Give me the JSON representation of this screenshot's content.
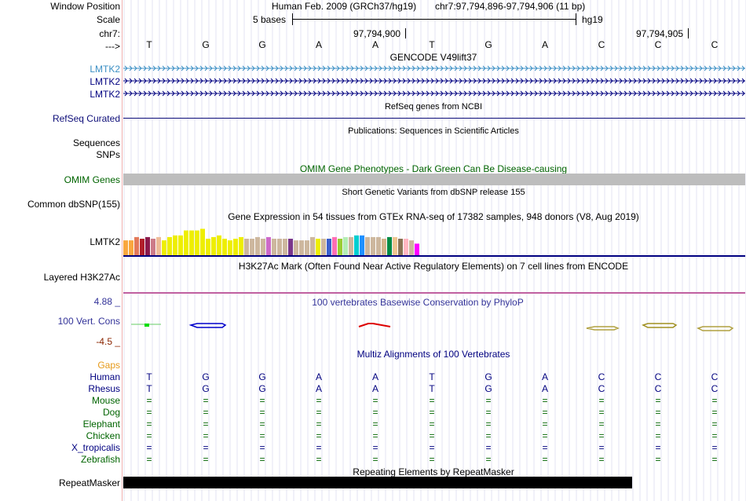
{
  "header": {
    "window_position_label": "Window Position",
    "scale_label": "Scale",
    "chrom_label": "chr7:",
    "strand_label": "--->",
    "assembly": "Human Feb. 2009 (GRCh37/hg19)",
    "position": "chr7:97,794,896-97,794,906 (11 bp)",
    "scale_text": "5 bases",
    "scale_db": "hg19",
    "coord1": "97,794,900",
    "coord2": "97,794,905",
    "bases": [
      "T",
      "G",
      "G",
      "A",
      "A",
      "T",
      "G",
      "A",
      "C",
      "C",
      "C"
    ]
  },
  "tracks": {
    "gencode": {
      "title": "GENCODE V49lift37",
      "genes": [
        "LMTK2",
        "LMTK2",
        "LMTK2"
      ],
      "color_first": "#3b8fc4",
      "color": "#000080"
    },
    "refseq": {
      "title": "RefSeq genes from NCBI",
      "label": "RefSeq Curated",
      "color": "#0c0c78"
    },
    "publications": {
      "title": "Publications: Sequences in Scientific Articles",
      "labels": [
        "Sequences",
        "SNPs"
      ]
    },
    "omim": {
      "title": "OMIM Gene Phenotypes - Dark Green Can Be Disease-causing",
      "label": "OMIM Genes",
      "color": "#006400"
    },
    "dbsnp": {
      "title": "Short Genetic Variants from dbSNP release 155",
      "label": "Common dbSNP(155)"
    },
    "gtex": {
      "title": "Gene Expression in 54 tissues from GTEx RNA-seq of 17382 samples, 948 donors (V8, Aug 2019)",
      "label": "LMTK2",
      "bars": [
        {
          "v": 0.45,
          "c": "#f9a73e"
        },
        {
          "v": 0.45,
          "c": "#f9a73e"
        },
        {
          "v": 0.55,
          "c": "#e3795a"
        },
        {
          "v": 0.5,
          "c": "#b01e2a"
        },
        {
          "v": 0.55,
          "c": "#8b1a4c"
        },
        {
          "v": 0.5,
          "c": "#cc7a88"
        },
        {
          "v": 0.55,
          "c": "#eebb99"
        },
        {
          "v": 0.45,
          "c": "#eeee00"
        },
        {
          "v": 0.55,
          "c": "#eeee00"
        },
        {
          "v": 0.6,
          "c": "#eeee00"
        },
        {
          "v": 0.6,
          "c": "#eeee00"
        },
        {
          "v": 0.75,
          "c": "#eeee00"
        },
        {
          "v": 0.75,
          "c": "#eeee00"
        },
        {
          "v": 0.75,
          "c": "#eeee00"
        },
        {
          "v": 0.8,
          "c": "#eeee00"
        },
        {
          "v": 0.5,
          "c": "#eeee00"
        },
        {
          "v": 0.55,
          "c": "#eeee00"
        },
        {
          "v": 0.6,
          "c": "#eeee00"
        },
        {
          "v": 0.5,
          "c": "#eeee00"
        },
        {
          "v": 0.45,
          "c": "#eeee00"
        },
        {
          "v": 0.5,
          "c": "#eeee00"
        },
        {
          "v": 0.55,
          "c": "#eeee00"
        },
        {
          "v": 0.5,
          "c": "#cdb79e"
        },
        {
          "v": 0.5,
          "c": "#cdb79e"
        },
        {
          "v": 0.55,
          "c": "#cdb79e"
        },
        {
          "v": 0.5,
          "c": "#cdb79e"
        },
        {
          "v": 0.55,
          "c": "#cd69c9"
        },
        {
          "v": 0.5,
          "c": "#cdb79e"
        },
        {
          "v": 0.5,
          "c": "#cdb79e"
        },
        {
          "v": 0.5,
          "c": "#cdb79e"
        },
        {
          "v": 0.5,
          "c": "#7a378b"
        },
        {
          "v": 0.45,
          "c": "#cdb79e"
        },
        {
          "v": 0.45,
          "c": "#cdb79e"
        },
        {
          "v": 0.45,
          "c": "#cdb79e"
        },
        {
          "v": 0.55,
          "c": "#cdb79e"
        },
        {
          "v": 0.5,
          "c": "#eeee00"
        },
        {
          "v": 0.5,
          "c": "#cdb79e"
        },
        {
          "v": 0.5,
          "c": "#3a5fcd"
        },
        {
          "v": 0.55,
          "c": "#ff6eb4"
        },
        {
          "v": 0.5,
          "c": "#9acd32"
        },
        {
          "v": 0.55,
          "c": "#b4eeb4"
        },
        {
          "v": 0.55,
          "c": "#cdb79e"
        },
        {
          "v": 0.6,
          "c": "#00ced1"
        },
        {
          "v": 0.6,
          "c": "#1e90ff"
        },
        {
          "v": 0.55,
          "c": "#cdb79e"
        },
        {
          "v": 0.55,
          "c": "#cdb79e"
        },
        {
          "v": 0.55,
          "c": "#cdb79e"
        },
        {
          "v": 0.5,
          "c": "#d2b48c"
        },
        {
          "v": 0.55,
          "c": "#008b45"
        },
        {
          "v": 0.55,
          "c": "#eec591"
        },
        {
          "v": 0.5,
          "c": "#8b7355"
        },
        {
          "v": 0.5,
          "c": "#ffb6c1"
        },
        {
          "v": 0.45,
          "c": "#cdb79e"
        },
        {
          "v": 0.35,
          "c": "#ff00ff"
        }
      ]
    },
    "h3k27ac": {
      "title": "H3K27Ac Mark (Often Found Near Active Regulatory Elements) on 7 cell lines from ENCODE",
      "label": "Layered H3K27Ac",
      "color": "#c060a0"
    },
    "phylop": {
      "title": "100 vertebrates Basewise Conservation by PhyloP",
      "label": "100 Vert. Cons",
      "ymax": "4.88 _",
      "ymin": "-4.5 _",
      "color": "#333399",
      "min_color": "#8b2500"
    },
    "multiz": {
      "title": "Multiz Alignments of 100 Vertebrates",
      "gaps_label": "Gaps",
      "species": [
        {
          "name": "Human",
          "color": "#000080",
          "row": [
            "T",
            "G",
            "G",
            "A",
            "A",
            "T",
            "G",
            "A",
            "C",
            "C",
            "C"
          ]
        },
        {
          "name": "Rhesus",
          "color": "#000080",
          "row": [
            "T",
            "G",
            "G",
            "A",
            "A",
            "T",
            "G",
            "A",
            "C",
            "C",
            "C"
          ]
        },
        {
          "name": "Mouse",
          "color": "#006400",
          "row": [
            "=",
            "=",
            "=",
            "=",
            "=",
            "=",
            "=",
            "=",
            "=",
            "=",
            "="
          ]
        },
        {
          "name": "Dog",
          "color": "#006400",
          "row": [
            "=",
            "=",
            "=",
            "=",
            "=",
            "=",
            "=",
            "=",
            "=",
            "=",
            "="
          ]
        },
        {
          "name": "Elephant",
          "color": "#006400",
          "row": [
            "=",
            "=",
            "=",
            "=",
            "=",
            "=",
            "=",
            "=",
            "=",
            "=",
            "="
          ]
        },
        {
          "name": "Chicken",
          "color": "#006400",
          "row": [
            "=",
            "=",
            "=",
            "=",
            "=",
            "=",
            "=",
            "=",
            "=",
            "=",
            "="
          ]
        },
        {
          "name": "X_tropicalis",
          "color": "#000080",
          "row": [
            "=",
            "=",
            "=",
            "=",
            "=",
            "=",
            "=",
            "=",
            "=",
            "=",
            "="
          ]
        },
        {
          "name": "Zebrafish",
          "color": "#006400",
          "row": [
            "=",
            "=",
            "=",
            "=",
            "=",
            "=",
            "=",
            "=",
            "=",
            "=",
            "="
          ]
        }
      ]
    },
    "repeatmasker": {
      "title": "Repeating Elements by RepeatMasker",
      "label": "RepeatMasker"
    }
  }
}
